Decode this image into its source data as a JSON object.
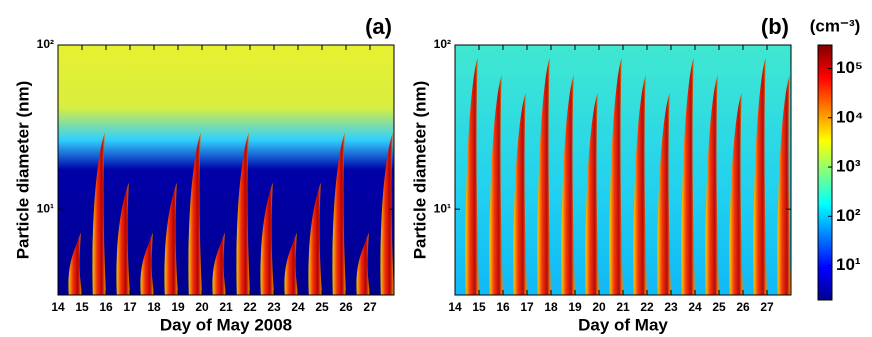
{
  "chart_data": [
    {
      "type": "heatmap",
      "title": "(a)",
      "x_label": "Day of May 2008",
      "y_label": "Particle diameter (nm)",
      "xlim": [
        14,
        28
      ],
      "xticks": [
        14,
        15,
        16,
        17,
        18,
        19,
        20,
        21,
        22,
        23,
        24,
        25,
        26,
        27
      ],
      "ylim": [
        3,
        100
      ],
      "yticks": [
        {
          "value": 10,
          "label": "10¹"
        },
        {
          "value": 100,
          "label": "10²"
        }
      ],
      "log_y": true
    },
    {
      "type": "heatmap",
      "title": "(b)",
      "x_label": "Day of May",
      "y_label": "Particle diameter (nm)",
      "xlim": [
        14,
        28
      ],
      "xticks": [
        14,
        15,
        16,
        17,
        18,
        19,
        20,
        21,
        22,
        23,
        24,
        25,
        26,
        27
      ],
      "ylim": [
        3,
        100
      ],
      "yticks": [
        {
          "value": 10,
          "label": "10¹"
        },
        {
          "value": 100,
          "label": "10²"
        }
      ],
      "log_y": true
    }
  ],
  "colorbar": {
    "label": "(cm⁻³)",
    "clim": [
      2,
      300000
    ],
    "log": true,
    "cticks": [
      {
        "value": 10,
        "label": "10¹"
      },
      {
        "value": 100,
        "label": "10²"
      },
      {
        "value": 1000,
        "label": "10³"
      },
      {
        "value": 10000,
        "label": "10⁴"
      },
      {
        "value": 100000,
        "label": "10⁵"
      }
    ]
  }
}
